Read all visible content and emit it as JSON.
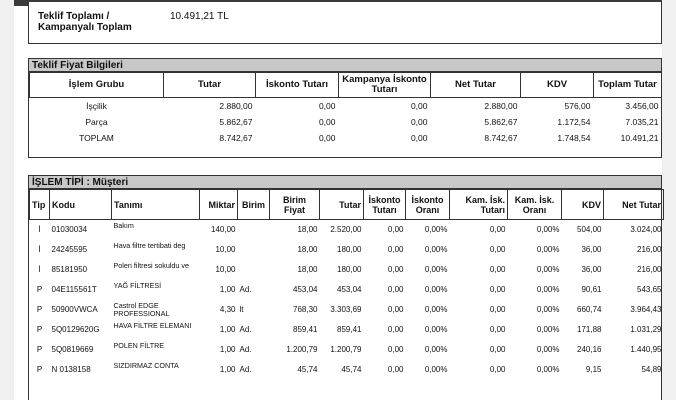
{
  "summary": {
    "label": "Teklif Toplamı / Kampanyalı Toplam",
    "value": "10.491,21 TL"
  },
  "fiyat": {
    "title": "Teklif Fiyat Bilgileri",
    "headers": [
      "İşlem Grubu",
      "Tutar",
      "İskonto Tutarı",
      "Kampanya İskonto Tutarı",
      "Net Tutar",
      "KDV",
      "Toplam Tutar"
    ],
    "rows": [
      [
        "İşçilik",
        "2.880,00",
        "0,00",
        "0,00",
        "2.880,00",
        "576,00",
        "3.456,00"
      ],
      [
        "Parça",
        "5.862,67",
        "0,00",
        "0,00",
        "5.862,67",
        "1.172,54",
        "7.035,21"
      ],
      [
        "TOPLAM",
        "8.742,67",
        "0,00",
        "0,00",
        "8.742,67",
        "1.748,54",
        "10.491,21"
      ]
    ]
  },
  "islem": {
    "title": "İŞLEM TİPİ : Müşteri",
    "headers": [
      "Tip",
      "Kodu",
      "Tanımı",
      "Miktar",
      "Birim",
      "Birim Fiyat",
      "Tutar",
      "İskonto Tutarı",
      "İskonto Oranı",
      "Kam. İsk. Tutarı",
      "Kam. İsk. Oranı",
      "KDV",
      "Net Tutar"
    ],
    "rows": [
      [
        "İ",
        "01030034",
        "Bakım",
        "140,00",
        "",
        "18,00",
        "2.520,00",
        "0,00",
        "0,00%",
        "0,00",
        "0,00%",
        "504,00",
        "3.024,00"
      ],
      [
        "İ",
        "24245595",
        "Hava filtre tertibati deg",
        "10,00",
        "",
        "18,00",
        "180,00",
        "0,00",
        "0,00%",
        "0,00",
        "0,00%",
        "36,00",
        "216,00"
      ],
      [
        "İ",
        "85181950",
        "Polen filtresi sokuldu ve",
        "10,00",
        "",
        "18,00",
        "180,00",
        "0,00",
        "0,00%",
        "0,00",
        "0,00%",
        "36,00",
        "216,00"
      ],
      [
        "P",
        "04E115561T",
        "YAĞ FİLTRESİ",
        "1,00",
        "Ad.",
        "453,04",
        "453,04",
        "0,00",
        "0,00%",
        "0,00",
        "0,00%",
        "90,61",
        "543,65"
      ],
      [
        "P",
        "50900VWCA",
        "Castrol EDGE PROFESSIONAL",
        "4,30",
        "lt",
        "768,30",
        "3.303,69",
        "0,00",
        "0,00%",
        "0,00",
        "0,00%",
        "660,74",
        "3.964,43"
      ],
      [
        "P",
        "5Q0129620G",
        "HAVA FİLTRE ELEMANI",
        "1,00",
        "Ad.",
        "859,41",
        "859,41",
        "0,00",
        "0,00%",
        "0,00",
        "0,00%",
        "171,88",
        "1.031,29"
      ],
      [
        "P",
        "5Q0819669",
        "POLEN FİLTRE",
        "1,00",
        "Ad.",
        "1.200,79",
        "1.200,79",
        "0,00",
        "0,00%",
        "0,00",
        "0,00%",
        "240,16",
        "1.440,95"
      ],
      [
        "P",
        "N 0138158",
        "SIZDIRMAZ CONTA",
        "1,00",
        "Ad.",
        "45,74",
        "45,74",
        "0,00",
        "0,00%",
        "0,00",
        "0,00%",
        "9,15",
        "54,89"
      ]
    ]
  }
}
